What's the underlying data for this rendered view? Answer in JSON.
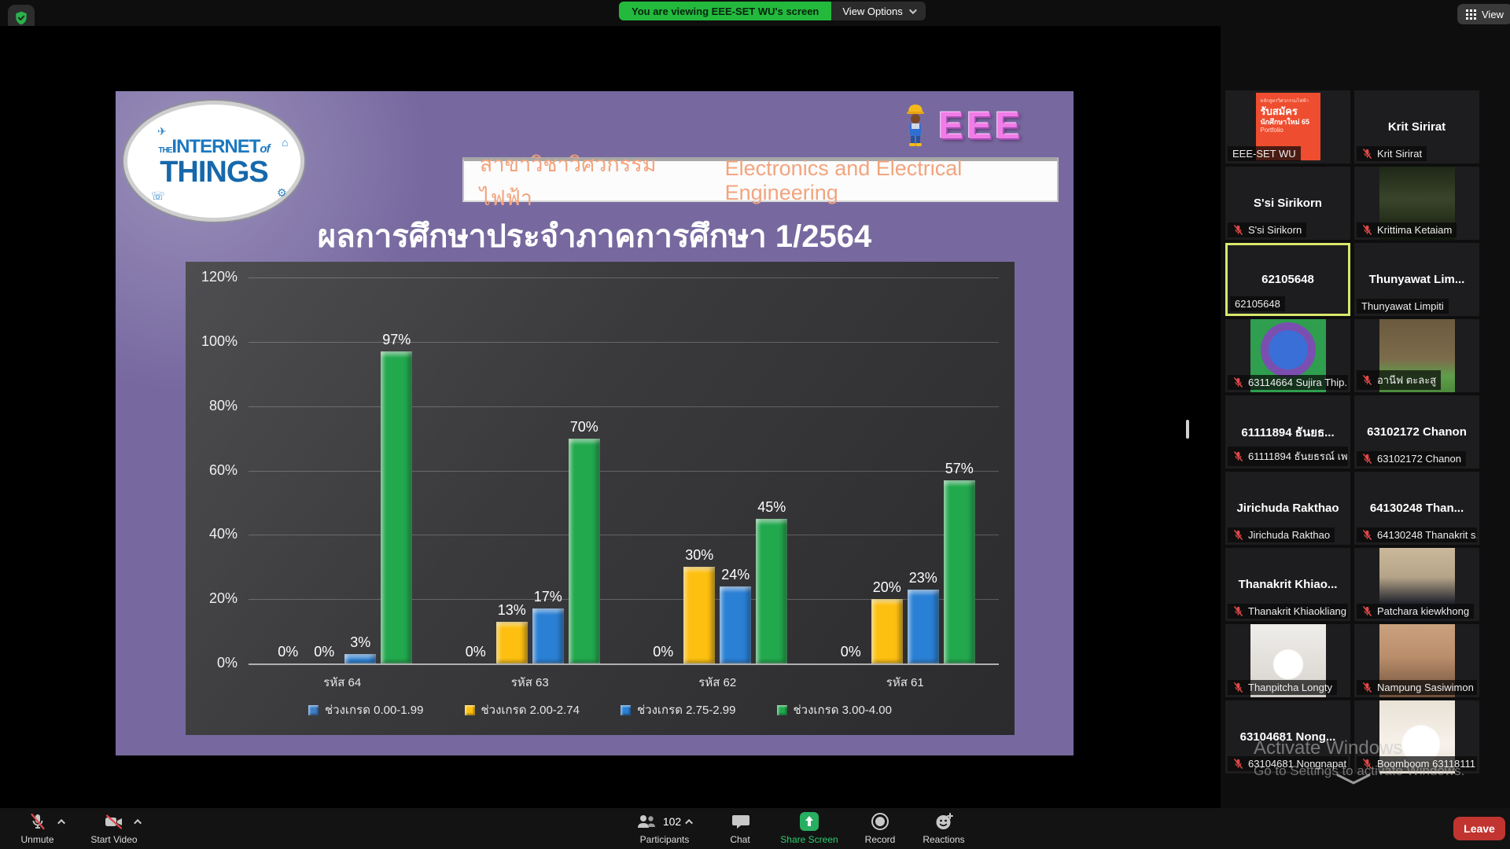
{
  "top_bar": {
    "banner_text": "You are viewing EEE-SET WU's screen",
    "view_options_label": "View Options",
    "view_label": "View"
  },
  "slide": {
    "logo": {
      "the": "THE",
      "word1": "INTERNET",
      "of": "of",
      "word2": "THINGS"
    },
    "dept_thai": "สาขาวิชาวิศวกรรมไฟฟ้า",
    "dept_en": "Electronics and Electrical Engineering",
    "eee": "EEE",
    "title": "ผลการศึกษาประจำภาคการศึกษา 1/2564"
  },
  "chart_data": {
    "type": "bar",
    "title": "ผลการศึกษาประจำภาคการศึกษา 1/2564",
    "categories": [
      "รหัส 64",
      "รหัส 63",
      "รหัส 62",
      "รหัส 61"
    ],
    "series": [
      {
        "name": "ช่วงเกรด 0.00-1.99",
        "color": "#3f7ec6",
        "values": [
          0,
          0,
          0,
          0
        ]
      },
      {
        "name": "ช่วงเกรด 2.00-2.74",
        "color": "#fdc011",
        "values": [
          0,
          13,
          30,
          20
        ]
      },
      {
        "name": "ช่วงเกรด 2.75-2.99",
        "color": "#2a80d5",
        "values": [
          3,
          17,
          24,
          23
        ]
      },
      {
        "name": "ช่วงเกรด 3.00-4.00",
        "color": "#22a84d",
        "values": [
          97,
          70,
          45,
          57
        ]
      }
    ],
    "ylim": [
      0,
      120
    ],
    "ytick_step": 20,
    "value_suffix": "%",
    "grid": true,
    "legend_position": "bottom"
  },
  "participants": [
    {
      "label": "EEE-SET WU",
      "muted": false,
      "photo": "poster",
      "poster_lines": [
        "หลักสูตรวิศวกรรมไฟฟ้า",
        "รับสมัคร",
        "นักศึกษาใหม่ 65",
        "Portfolio"
      ]
    },
    {
      "display": "Krit Sirirat",
      "label": "Krit Sirirat",
      "muted": true
    },
    {
      "display": "S'si Sirikorn",
      "label": "S'si Sirikorn",
      "muted": true
    },
    {
      "photo": "krittima",
      "label": "Krittima Ketaiam",
      "muted": true
    },
    {
      "display": "62105648",
      "label": "62105648",
      "muted": false,
      "highlighted": true
    },
    {
      "display": "Thunyawat  Lim...",
      "label": "Thunyawat Limpiti",
      "muted": false
    },
    {
      "photo": "sujira",
      "label": "63114664 Sujira Thip...",
      "muted": true
    },
    {
      "photo": "gorilla",
      "label": "อานีฟ ตะละสู",
      "muted": true
    },
    {
      "display": "61111894 ธันยธ...",
      "label": "61111894 ธันยธรณ์ เพ...",
      "muted": true
    },
    {
      "display": "63102172 Chanon",
      "label": "63102172 Chanon",
      "muted": true
    },
    {
      "display": "Jirichuda Rakthao",
      "label": "Jirichuda Rakthao",
      "muted": true
    },
    {
      "display": "64130248 Than...",
      "label": "64130248 Thanakrit s...",
      "muted": true
    },
    {
      "display": "Thanakrit  Khiao...",
      "label": "Thanakrit Khiaokliang",
      "muted": true
    },
    {
      "photo": "patchara",
      "label": "Patchara kiewkhong",
      "muted": true
    },
    {
      "photo": "bird",
      "label": "Thanpitcha Longty",
      "muted": true
    },
    {
      "photo": "nampung",
      "label": "Nampung Sasiwimon",
      "muted": true
    },
    {
      "display": "63104681 Nong...",
      "label": "63104681 Nongnapat",
      "muted": true
    },
    {
      "photo": "cat",
      "label": "Boomboom 63118111",
      "muted": true
    }
  ],
  "toolbar": {
    "unmute_label": "Unmute",
    "start_video_label": "Start Video",
    "participants_label": "Participants",
    "participants_count": "102",
    "chat_label": "Chat",
    "share_screen_label": "Share Screen",
    "record_label": "Record",
    "reactions_label": "Reactions",
    "leave_label": "Leave"
  },
  "watermark": {
    "line1": "Activate Windows",
    "line2": "Go to Settings to activate Windows."
  }
}
